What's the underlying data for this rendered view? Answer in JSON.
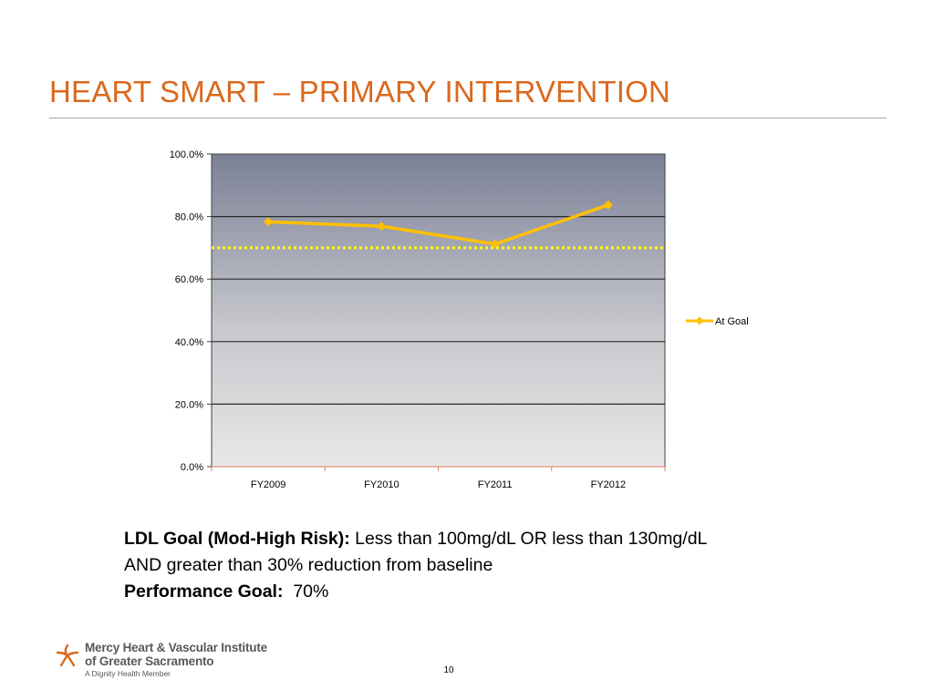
{
  "slide": {
    "title": "HEART SMART – PRIMARY INTERVENTION",
    "page_number": "10"
  },
  "chart_data": {
    "type": "line",
    "categories": [
      "FY2009",
      "FY2010",
      "FY2011",
      "FY2012"
    ],
    "series": [
      {
        "name": "At Goal",
        "values": [
          78.3,
          76.9,
          71.2,
          83.7
        ],
        "color": "#ffc000"
      }
    ],
    "goal_line": {
      "value": 70,
      "color": "#ffff00",
      "style": "dotted"
    },
    "y_ticks": [
      "0.0%",
      "20.0%",
      "40.0%",
      "60.0%",
      "80.0%",
      "100.0%"
    ],
    "ylim": [
      0,
      100
    ],
    "grid": true,
    "legend": "right",
    "plot_background": "gradient-dark-top-to-light-bottom"
  },
  "text": {
    "ldl_label": "LDL Goal (Mod-High Risk):",
    "ldl_line1": " Less than 100mg/dL OR less than 130mg/dL",
    "ldl_line2": "AND greater than 30% reduction from baseline",
    "perf_label": "Performance Goal:",
    "perf_value": "  70%"
  },
  "logo": {
    "line1": "Mercy Heart & Vascular Institute",
    "line2": "of Greater Sacramento",
    "line3": "A Dignity Health Member",
    "mark_color": "#d9691e"
  }
}
